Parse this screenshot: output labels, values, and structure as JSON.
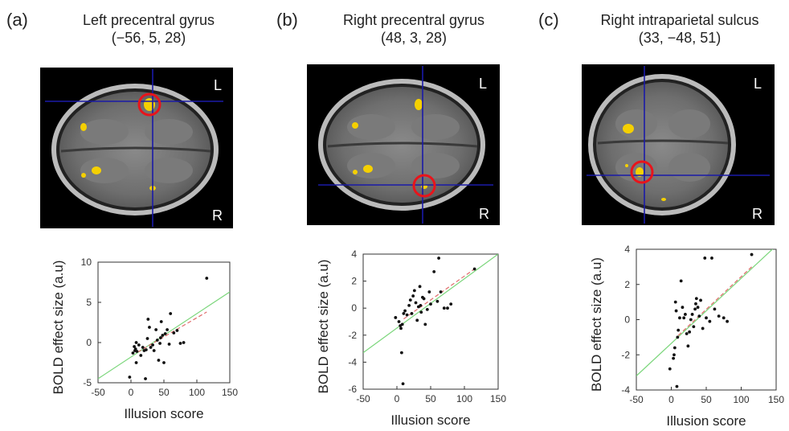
{
  "panels": [
    {
      "letter": "(a)",
      "title": "Left precentral gyrus",
      "coords": "(−56, 5, 28)",
      "orient_top": "L",
      "orient_bottom": "R"
    },
    {
      "letter": "(b)",
      "title": "Right precentral gyrus",
      "coords": "(48, 3, 28)",
      "orient_top": "L",
      "orient_bottom": "R"
    },
    {
      "letter": "(c)",
      "title": "Right intraparietal sulcus",
      "coords": "(33, −48, 51)",
      "orient_top": "L",
      "orient_bottom": "R"
    }
  ],
  "colors": {
    "points": "#111111",
    "fit_green": "#7bd67b",
    "fit_red": "#e06b6b",
    "crosshair": "#1a1aa8",
    "roi_circle": "#e8141b",
    "activation": "#f5d000"
  },
  "chart_data": [
    {
      "type": "scatter",
      "xlabel": "Illusion score",
      "ylabel": "BOLD effect size (a.u)",
      "xlim": [
        -50,
        150
      ],
      "ylim": [
        -5,
        10
      ],
      "xticks": [
        -50,
        0,
        50,
        100,
        150
      ],
      "yticks": [
        -5,
        0,
        5,
        10
      ],
      "points": [
        [
          -2,
          -4.3
        ],
        [
          3,
          -1.3
        ],
        [
          5,
          -0.5
        ],
        [
          6,
          -1.0
        ],
        [
          7,
          -0.8
        ],
        [
          8,
          -2.5
        ],
        [
          8,
          0.0
        ],
        [
          9,
          -1.1
        ],
        [
          12,
          -0.3
        ],
        [
          15,
          -1.6
        ],
        [
          18,
          -0.6
        ],
        [
          20,
          -1.0
        ],
        [
          22,
          -4.5
        ],
        [
          23,
          -0.9
        ],
        [
          25,
          0.5
        ],
        [
          26,
          2.9
        ],
        [
          28,
          1.9
        ],
        [
          30,
          -0.6
        ],
        [
          33,
          -0.3
        ],
        [
          35,
          -1.0
        ],
        [
          38,
          1.6
        ],
        [
          40,
          0.3
        ],
        [
          42,
          -2.2
        ],
        [
          44,
          -0.1
        ],
        [
          45,
          0.6
        ],
        [
          46,
          2.6
        ],
        [
          48,
          0.9
        ],
        [
          50,
          -2.5
        ],
        [
          52,
          1.1
        ],
        [
          55,
          1.6
        ],
        [
          58,
          -0.2
        ],
        [
          60,
          3.6
        ],
        [
          65,
          1.2
        ],
        [
          70,
          1.5
        ],
        [
          75,
          -0.1
        ],
        [
          80,
          0.0
        ],
        [
          115,
          8.0
        ]
      ],
      "fit_green": {
        "x": [
          -50,
          150
        ],
        "y": [
          -4.5,
          6.3
        ]
      },
      "fit_red": {
        "x": [
          10,
          115
        ],
        "y": [
          -1.2,
          3.8
        ]
      }
    },
    {
      "type": "scatter",
      "xlabel": "Illusion score",
      "ylabel": "BOLD effect size (a.u)",
      "xlim": [
        -50,
        150
      ],
      "ylim": [
        -6,
        4
      ],
      "xticks": [
        -50,
        0,
        50,
        100,
        150
      ],
      "yticks": [
        -6,
        -4,
        -2,
        0,
        2,
        4
      ],
      "points": [
        [
          -2,
          -0.7
        ],
        [
          3,
          -1.0
        ],
        [
          5,
          -1.3
        ],
        [
          6,
          -1.5
        ],
        [
          7,
          -3.3
        ],
        [
          8,
          -1.2
        ],
        [
          9,
          -5.6
        ],
        [
          10,
          -0.4
        ],
        [
          12,
          -0.2
        ],
        [
          15,
          -0.5
        ],
        [
          18,
          0.2
        ],
        [
          20,
          0.6
        ],
        [
          22,
          -0.4
        ],
        [
          24,
          0.9
        ],
        [
          26,
          1.3
        ],
        [
          28,
          0.4
        ],
        [
          30,
          -0.9
        ],
        [
          32,
          0.1
        ],
        [
          34,
          1.6
        ],
        [
          35,
          0.2
        ],
        [
          36,
          -0.3
        ],
        [
          38,
          0.8
        ],
        [
          40,
          0.7
        ],
        [
          42,
          -1.2
        ],
        [
          45,
          -0.1
        ],
        [
          48,
          1.2
        ],
        [
          50,
          0.3
        ],
        [
          55,
          2.7
        ],
        [
          60,
          0.5
        ],
        [
          62,
          3.7
        ],
        [
          65,
          1.2
        ],
        [
          70,
          0.0
        ],
        [
          75,
          0.0
        ],
        [
          80,
          0.3
        ],
        [
          115,
          2.9
        ]
      ],
      "fit_green": {
        "x": [
          -50,
          150
        ],
        "y": [
          -3.3,
          4.0
        ]
      },
      "fit_red": {
        "x": [
          10,
          115
        ],
        "y": [
          -0.8,
          2.9
        ]
      }
    },
    {
      "type": "scatter",
      "xlabel": "Illusion score",
      "ylabel": "BOLD effect size (a.u)",
      "xlim": [
        -50,
        150
      ],
      "ylim": [
        -4,
        4
      ],
      "xticks": [
        -50,
        0,
        50,
        100,
        150
      ],
      "yticks": [
        -4,
        -2,
        0,
        2,
        4
      ],
      "points": [
        [
          -2,
          -2.8
        ],
        [
          3,
          -2.2
        ],
        [
          4,
          -2.0
        ],
        [
          5,
          -1.6
        ],
        [
          6,
          1.0
        ],
        [
          7,
          0.5
        ],
        [
          8,
          -3.8
        ],
        [
          9,
          -1.0
        ],
        [
          10,
          -0.6
        ],
        [
          12,
          0.1
        ],
        [
          14,
          2.2
        ],
        [
          16,
          0.7
        ],
        [
          18,
          0.1
        ],
        [
          20,
          0.3
        ],
        [
          22,
          -0.8
        ],
        [
          24,
          -1.5
        ],
        [
          26,
          -0.7
        ],
        [
          28,
          0.0
        ],
        [
          30,
          0.3
        ],
        [
          32,
          -0.4
        ],
        [
          34,
          0.6
        ],
        [
          35,
          0.9
        ],
        [
          36,
          1.2
        ],
        [
          38,
          0.7
        ],
        [
          40,
          0.2
        ],
        [
          42,
          1.1
        ],
        [
          45,
          -0.5
        ],
        [
          48,
          3.5
        ],
        [
          50,
          0.1
        ],
        [
          55,
          -0.1
        ],
        [
          58,
          3.5
        ],
        [
          62,
          0.6
        ],
        [
          68,
          0.2
        ],
        [
          75,
          0.1
        ],
        [
          80,
          -0.1
        ],
        [
          115,
          3.7
        ]
      ],
      "fit_green": {
        "x": [
          -50,
          150
        ],
        "y": [
          -3.2,
          4.2
        ]
      },
      "fit_red": {
        "x": [
          10,
          115
        ],
        "y": [
          -0.9,
          3.0
        ]
      }
    }
  ]
}
